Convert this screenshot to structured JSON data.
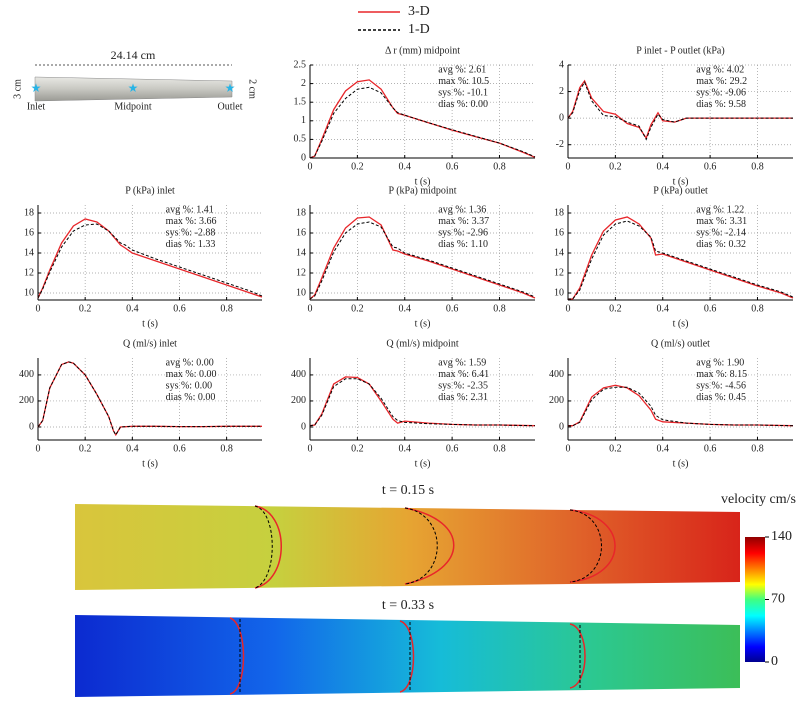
{
  "schematic": {
    "length": "24.14 cm",
    "inlet_diameter": "3 cm",
    "outlet_diameter": "2 cm",
    "locations": [
      "Inlet",
      "Midpoint",
      "Outlet"
    ]
  },
  "chart_data": [
    {
      "type": "line",
      "title": "Δ r (mm) midpoint",
      "xlabel": "t (s)",
      "x": [
        0,
        0.02,
        0.05,
        0.1,
        0.15,
        0.2,
        0.25,
        0.3,
        0.35,
        0.37,
        0.4,
        0.5,
        0.6,
        0.7,
        0.8,
        0.9,
        0.95
      ],
      "series": [
        {
          "name": "3-D",
          "color": "#e8262a",
          "linestyle": "solid",
          "values": [
            0,
            0.05,
            0.5,
            1.3,
            1.8,
            2.05,
            2.1,
            1.85,
            1.35,
            1.2,
            1.15,
            0.95,
            0.75,
            0.57,
            0.4,
            0.15,
            0.02
          ]
        },
        {
          "name": "1-D",
          "color": "#000000",
          "linestyle": "dashed",
          "values": [
            0,
            0.05,
            0.45,
            1.2,
            1.6,
            1.85,
            1.9,
            1.75,
            1.35,
            1.22,
            1.15,
            0.95,
            0.76,
            0.58,
            0.4,
            0.17,
            0.03
          ]
        }
      ],
      "xlim": [
        0,
        0.95
      ],
      "xticks": [
        0,
        0.2,
        0.4,
        0.6,
        0.8
      ],
      "ylim": [
        0,
        2.5
      ],
      "yticks": [
        0,
        0.5,
        1,
        1.5,
        2,
        2.5
      ],
      "grid": true,
      "annotations": [
        "avg %: 2.61",
        "max %: 10.5",
        "sys %: -10.1",
        "dias %: 0.00"
      ]
    },
    {
      "type": "line",
      "title": "P inlet - P outlet (kPa)",
      "xlabel": "t (s)",
      "x": [
        0,
        0.02,
        0.05,
        0.07,
        0.1,
        0.15,
        0.2,
        0.25,
        0.3,
        0.33,
        0.35,
        0.38,
        0.4,
        0.45,
        0.5,
        0.6,
        0.7,
        0.8,
        0.95
      ],
      "series": [
        {
          "name": "3-D",
          "color": "#e8262a",
          "linestyle": "solid",
          "values": [
            0,
            0.5,
            2.3,
            2.8,
            1.5,
            0.5,
            0.3,
            -0.4,
            -0.7,
            -1.5,
            -0.5,
            0.4,
            -0.2,
            -0.3,
            0,
            0,
            0,
            0,
            0
          ]
        },
        {
          "name": "1-D",
          "color": "#000000",
          "linestyle": "dashed",
          "values": [
            0,
            0.4,
            2.1,
            2.7,
            1.3,
            0.2,
            0.1,
            -0.3,
            -0.6,
            -1.6,
            -0.7,
            0.3,
            -0.1,
            -0.3,
            0,
            0,
            0,
            0,
            0
          ]
        }
      ],
      "xlim": [
        0,
        0.95
      ],
      "xticks": [
        0,
        0.2,
        0.4,
        0.6,
        0.8
      ],
      "ylim": [
        -3,
        4
      ],
      "yticks": [
        -2,
        0,
        2,
        4
      ],
      "grid": true,
      "annotations": [
        "avg %: 4.02",
        "max %: 29.2",
        "sys %: -9.06",
        "dias %: 9.58"
      ]
    },
    {
      "type": "line",
      "title": "P (kPa) inlet",
      "xlabel": "t (s)",
      "x": [
        0,
        0.02,
        0.05,
        0.1,
        0.15,
        0.2,
        0.25,
        0.3,
        0.35,
        0.37,
        0.4,
        0.5,
        0.6,
        0.7,
        0.8,
        0.9,
        0.95
      ],
      "series": [
        {
          "name": "3-D",
          "color": "#e8262a",
          "linestyle": "solid",
          "values": [
            9.5,
            10.5,
            12.3,
            15,
            16.7,
            17.4,
            17.1,
            16.2,
            14.8,
            14.5,
            14,
            13.2,
            12.4,
            11.6,
            10.8,
            10,
            9.6
          ]
        },
        {
          "name": "1-D",
          "color": "#000000",
          "linestyle": "dashed",
          "values": [
            9.5,
            10.4,
            12.1,
            14.6,
            16.2,
            16.8,
            16.9,
            16.2,
            15,
            14.8,
            14.3,
            13.4,
            12.6,
            11.8,
            11,
            10.2,
            9.7
          ]
        }
      ],
      "xlim": [
        0,
        0.95
      ],
      "xticks": [
        0,
        0.2,
        0.4,
        0.6,
        0.8
      ],
      "ylim": [
        9.3,
        18.8
      ],
      "yticks": [
        10,
        12,
        14,
        16,
        18
      ],
      "grid": true,
      "annotations": [
        "avg %: 1.41",
        "max %: 3.66",
        "sys %: -2.88",
        "dias %: 1.33"
      ]
    },
    {
      "type": "line",
      "title": "P (kPa) midpoint",
      "xlabel": "t (s)",
      "x": [
        0,
        0.02,
        0.05,
        0.1,
        0.15,
        0.2,
        0.25,
        0.3,
        0.35,
        0.37,
        0.4,
        0.5,
        0.6,
        0.7,
        0.8,
        0.9,
        0.95
      ],
      "series": [
        {
          "name": "3-D",
          "color": "#e8262a",
          "linestyle": "solid",
          "values": [
            9.4,
            9.8,
            11.5,
            14.5,
            16.5,
            17.5,
            17.6,
            16.8,
            14.3,
            14.2,
            13.9,
            13.2,
            12.4,
            11.6,
            10.8,
            10,
            9.5
          ]
        },
        {
          "name": "1-D",
          "color": "#000000",
          "linestyle": "dashed",
          "values": [
            9.4,
            9.7,
            11.2,
            14.1,
            16,
            16.9,
            17.1,
            16.6,
            14.6,
            14.5,
            14,
            13.3,
            12.5,
            11.7,
            10.9,
            10.1,
            9.6
          ]
        }
      ],
      "xlim": [
        0,
        0.95
      ],
      "xticks": [
        0,
        0.2,
        0.4,
        0.6,
        0.8
      ],
      "ylim": [
        9.3,
        18.8
      ],
      "yticks": [
        10,
        12,
        14,
        16,
        18
      ],
      "grid": true,
      "annotations": [
        "avg %: 1.36",
        "max %: 3.37",
        "sys %: -2.96",
        "dias %: 1.10"
      ]
    },
    {
      "type": "line",
      "title": "P (kPa) outlet",
      "xlabel": "t (s)",
      "x": [
        0,
        0.02,
        0.05,
        0.1,
        0.15,
        0.2,
        0.25,
        0.3,
        0.35,
        0.37,
        0.4,
        0.5,
        0.6,
        0.7,
        0.8,
        0.9,
        0.95
      ],
      "series": [
        {
          "name": "3-D",
          "color": "#e8262a",
          "linestyle": "solid",
          "values": [
            9.4,
            9.4,
            10.5,
            13.8,
            16.2,
            17.3,
            17.6,
            16.9,
            15.5,
            13.8,
            13.9,
            13.1,
            12.3,
            11.5,
            10.7,
            10,
            9.5
          ]
        },
        {
          "name": "1-D",
          "color": "#000000",
          "linestyle": "dashed",
          "values": [
            9.4,
            9.4,
            10.3,
            13.4,
            15.8,
            16.9,
            17.2,
            16.7,
            15.6,
            14.2,
            14,
            13.2,
            12.4,
            11.6,
            10.8,
            10.1,
            9.6
          ]
        }
      ],
      "xlim": [
        0,
        0.95
      ],
      "xticks": [
        0,
        0.2,
        0.4,
        0.6,
        0.8
      ],
      "ylim": [
        9.3,
        18.8
      ],
      "yticks": [
        10,
        12,
        14,
        16,
        18
      ],
      "grid": true,
      "annotations": [
        "avg %: 1.22",
        "max %: 3.31",
        "sys %: -2.14",
        "dias %: 0.32"
      ]
    },
    {
      "type": "line",
      "title": "Q (ml/s) inlet",
      "xlabel": "t (s)",
      "x": [
        0,
        0.02,
        0.05,
        0.1,
        0.13,
        0.15,
        0.2,
        0.25,
        0.3,
        0.32,
        0.33,
        0.35,
        0.4,
        0.5,
        0.6,
        0.7,
        0.8,
        0.95
      ],
      "series": [
        {
          "name": "3-D",
          "color": "#e8262a",
          "linestyle": "solid",
          "values": [
            0,
            50,
            300,
            480,
            500,
            490,
            400,
            250,
            80,
            -30,
            -60,
            0,
            5,
            5,
            3,
            3,
            5,
            5
          ]
        },
        {
          "name": "1-D",
          "color": "#000000",
          "linestyle": "dashed",
          "values": [
            0,
            50,
            300,
            480,
            500,
            490,
            400,
            250,
            80,
            -30,
            -60,
            0,
            5,
            5,
            3,
            3,
            5,
            5
          ]
        }
      ],
      "xlim": [
        0,
        0.95
      ],
      "xticks": [
        0,
        0.2,
        0.4,
        0.6,
        0.8
      ],
      "ylim": [
        -100,
        530
      ],
      "yticks": [
        0,
        200,
        400
      ],
      "grid": true,
      "annotations": [
        "avg %: 0.00",
        "max %: 0.00",
        "sys %: 0.00",
        "dias %: 0.00"
      ]
    },
    {
      "type": "line",
      "title": "Q (ml/s) midpoint",
      "xlabel": "t (s)",
      "x": [
        0,
        0.02,
        0.05,
        0.1,
        0.15,
        0.2,
        0.25,
        0.3,
        0.35,
        0.37,
        0.4,
        0.5,
        0.6,
        0.7,
        0.8,
        0.95
      ],
      "series": [
        {
          "name": "3-D",
          "color": "#e8262a",
          "linestyle": "solid",
          "values": [
            10,
            15,
            100,
            330,
            385,
            380,
            330,
            200,
            60,
            30,
            45,
            30,
            20,
            15,
            15,
            10
          ]
        },
        {
          "name": "1-D",
          "color": "#000000",
          "linestyle": "dashed",
          "values": [
            10,
            15,
            90,
            310,
            370,
            370,
            330,
            220,
            80,
            50,
            35,
            25,
            20,
            15,
            15,
            10
          ]
        }
      ],
      "xlim": [
        0,
        0.95
      ],
      "xticks": [
        0,
        0.2,
        0.4,
        0.6,
        0.8
      ],
      "ylim": [
        -100,
        530
      ],
      "yticks": [
        0,
        200,
        400
      ],
      "grid": true,
      "annotations": [
        "avg %: 1.59",
        "max %: 6.41",
        "sys %: -2.35",
        "dias %: 2.31"
      ]
    },
    {
      "type": "line",
      "title": "Q (ml/s) outlet",
      "xlabel": "t (s)",
      "x": [
        0,
        0.02,
        0.05,
        0.1,
        0.15,
        0.2,
        0.25,
        0.3,
        0.35,
        0.37,
        0.4,
        0.5,
        0.6,
        0.7,
        0.8,
        0.95
      ],
      "series": [
        {
          "name": "3-D",
          "color": "#e8262a",
          "linestyle": "solid",
          "values": [
            10,
            10,
            40,
            230,
            300,
            320,
            300,
            240,
            130,
            60,
            40,
            30,
            20,
            15,
            15,
            10
          ]
        },
        {
          "name": "1-D",
          "color": "#000000",
          "linestyle": "dashed",
          "values": [
            10,
            10,
            35,
            210,
            290,
            305,
            305,
            260,
            160,
            90,
            55,
            30,
            20,
            15,
            15,
            10
          ]
        }
      ],
      "xlim": [
        0,
        0.95
      ],
      "xticks": [
        0,
        0.2,
        0.4,
        0.6,
        0.8
      ],
      "ylim": [
        -100,
        530
      ],
      "yticks": [
        0,
        200,
        400
      ],
      "grid": true,
      "annotations": [
        "avg %: 1.90",
        "max %: 8.15",
        "sys %: -4.56",
        "dias %: 0.45"
      ]
    }
  ],
  "contours": {
    "panels": [
      "t = 0.15 s",
      "t = 0.33 s"
    ],
    "colorbar": {
      "title": "velocity cm/s",
      "lim": [
        0,
        140
      ],
      "ticks": [
        0,
        70,
        140
      ]
    }
  }
}
